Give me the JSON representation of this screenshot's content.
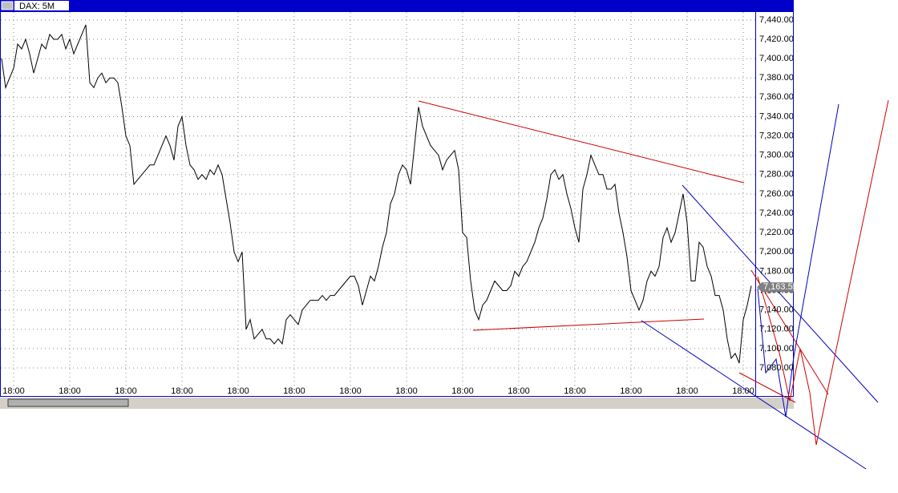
{
  "chart_data": {
    "type": "line",
    "title": "DAX: 5M",
    "color": "#000000",
    "grid": true,
    "values": [
      7400,
      7370,
      7380,
      7390,
      7415,
      7410,
      7420,
      7405,
      7385,
      7400,
      7415,
      7410,
      7425,
      7420,
      7420,
      7425,
      7410,
      7420,
      7405,
      7415,
      7425,
      7435,
      7375,
      7370,
      7380,
      7385,
      7375,
      7380,
      7380,
      7375,
      7350,
      7320,
      7310,
      7270,
      7275,
      7280,
      7285,
      7290,
      7290,
      7300,
      7310,
      7320,
      7310,
      7295,
      7330,
      7340,
      7310,
      7290,
      7285,
      7275,
      7280,
      7275,
      7285,
      7280,
      7290,
      7280,
      7255,
      7230,
      7200,
      7190,
      7200,
      7120,
      7130,
      7110,
      7115,
      7120,
      7110,
      7110,
      7105,
      7110,
      7105,
      7130,
      7135,
      7130,
      7125,
      7140,
      7145,
      7150,
      7150,
      7150,
      7155,
      7150,
      7155,
      7155,
      7160,
      7165,
      7170,
      7175,
      7175,
      7165,
      7145,
      7160,
      7175,
      7170,
      7185,
      7205,
      7220,
      7250,
      7260,
      7280,
      7290,
      7285,
      7270,
      7310,
      7350,
      7330,
      7320,
      7310,
      7305,
      7300,
      7285,
      7295,
      7300,
      7305,
      7285,
      7220,
      7215,
      7170,
      7140,
      7130,
      7145,
      7150,
      7160,
      7170,
      7165,
      7160,
      7160,
      7165,
      7180,
      7175,
      7185,
      7190,
      7200,
      7210,
      7225,
      7235,
      7255,
      7280,
      7285,
      7275,
      7280,
      7260,
      7245,
      7225,
      7210,
      7265,
      7280,
      7300,
      7290,
      7280,
      7280,
      7265,
      7265,
      7270,
      7240,
      7220,
      7195,
      7160,
      7150,
      7140,
      7150,
      7170,
      7180,
      7175,
      7185,
      7215,
      7225,
      7210,
      7220,
      7240,
      7260,
      7230,
      7170,
      7170,
      7210,
      7205,
      7185,
      7175,
      7155,
      7155,
      7140,
      7110,
      7090,
      7095,
      7085,
      7130,
      7145,
      7165
    ],
    "xlim": [
      0,
      188
    ],
    "xticks": [
      {
        "value": 3,
        "label": "18:00"
      },
      {
        "value": 17,
        "label": "18:00"
      },
      {
        "value": 31,
        "label": "18:00"
      },
      {
        "value": 45,
        "label": "18:00"
      },
      {
        "value": 59,
        "label": "18:00"
      },
      {
        "value": 73,
        "label": "18:00"
      },
      {
        "value": 87,
        "label": "18:00"
      },
      {
        "value": 101,
        "label": "18:00"
      },
      {
        "value": 115,
        "label": "18:00"
      },
      {
        "value": 129,
        "label": "18:00"
      },
      {
        "value": 143,
        "label": "18:00"
      },
      {
        "value": 157,
        "label": "18:00"
      },
      {
        "value": 171,
        "label": "18:00"
      },
      {
        "value": 185,
        "label": "18:00"
      }
    ],
    "ylim": [
      7051,
      7449
    ],
    "yticks": [
      {
        "value": 7080,
        "label": "7,080.00"
      },
      {
        "value": 7100,
        "label": "7,100.00"
      },
      {
        "value": 7120,
        "label": "7,120.00"
      },
      {
        "value": 7140,
        "label": "7,140.00"
      },
      {
        "value": 7160,
        "label": "7,160.00"
      },
      {
        "value": 7180,
        "label": "7,180.00"
      },
      {
        "value": 7200,
        "label": "7,200.00"
      },
      {
        "value": 7220,
        "label": "7,220.00"
      },
      {
        "value": 7240,
        "label": "7,240.00"
      },
      {
        "value": 7260,
        "label": "7,260.00"
      },
      {
        "value": 7280,
        "label": "7,280.00"
      },
      {
        "value": 7300,
        "label": "7,300.00"
      },
      {
        "value": 7320,
        "label": "7,320.00"
      },
      {
        "value": 7340,
        "label": "7,340.00"
      },
      {
        "value": 7360,
        "label": "7,360.00"
      },
      {
        "value": 7380,
        "label": "7,380.00"
      },
      {
        "value": 7400,
        "label": "7,400.00"
      },
      {
        "value": 7420,
        "label": "7,420.00"
      },
      {
        "value": 7440,
        "label": "7,440.00"
      }
    ],
    "last_price": {
      "value": 7163.55,
      "label": "7,163.55"
    }
  }
}
